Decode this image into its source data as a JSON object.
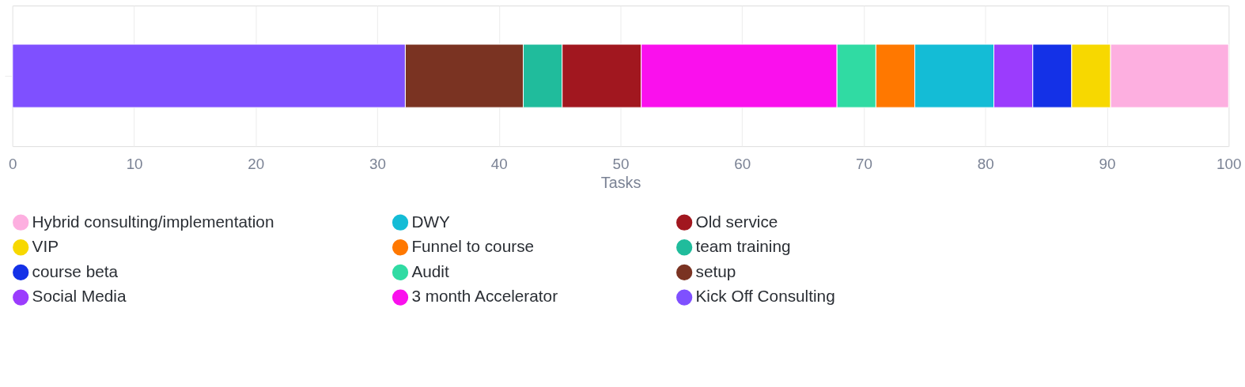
{
  "chart_data": {
    "type": "bar",
    "orientation": "horizontal",
    "stacked": true,
    "categories": [
      null
    ],
    "xlabel": "Tasks",
    "xlim": [
      0,
      100
    ],
    "xticks": [
      0,
      10,
      20,
      30,
      40,
      50,
      60,
      70,
      80,
      90,
      100
    ],
    "grid": "x",
    "legend": "bottom",
    "tick_labels": "x",
    "series": [
      {
        "name": "Kick Off Consulting",
        "color": "#7f50ff",
        "values": [
          32.3
        ]
      },
      {
        "name": "setup",
        "color": "#7a3322",
        "values": [
          9.7
        ]
      },
      {
        "name": "team training",
        "color": "#20bc9c",
        "values": [
          3.2
        ]
      },
      {
        "name": "Old service",
        "color": "#a1171f",
        "values": [
          6.5
        ]
      },
      {
        "name": "3 month Accelerator",
        "color": "#fa10ed",
        "values": [
          16.1
        ]
      },
      {
        "name": "Audit",
        "color": "#30dba3",
        "values": [
          3.2
        ]
      },
      {
        "name": "Funnel to course",
        "color": "#ff7800",
        "values": [
          3.2
        ]
      },
      {
        "name": "DWY",
        "color": "#14bcd6",
        "values": [
          6.5
        ]
      },
      {
        "name": "Social Media",
        "color": "#9b3cfd",
        "values": [
          3.2
        ]
      },
      {
        "name": "course beta",
        "color": "#1431e7",
        "values": [
          3.2
        ]
      },
      {
        "name": "VIP",
        "color": "#f7d800",
        "values": [
          3.2
        ]
      },
      {
        "name": "Hybrid consulting/implementation",
        "color": "#fdafe0",
        "values": [
          9.7
        ]
      }
    ]
  }
}
